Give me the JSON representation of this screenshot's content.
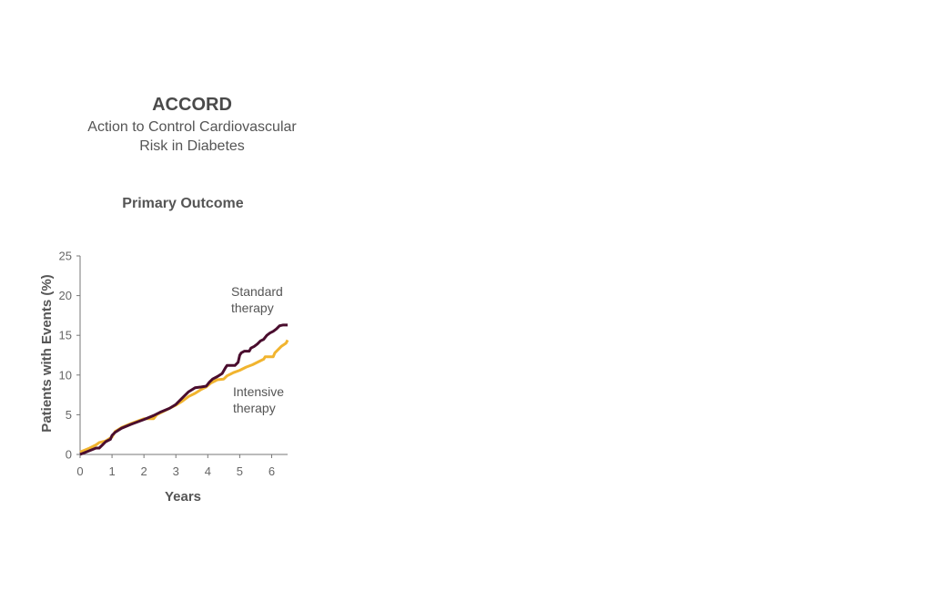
{
  "header": {
    "title": "ACCORD",
    "subtitle_line1": "Action to Control Cardiovascular",
    "subtitle_line2": "Risk in Diabetes"
  },
  "chart_data": {
    "type": "line",
    "title": "Primary Outcome",
    "xlabel": "Years",
    "ylabel": "Patients with Events (%)",
    "xlim": [
      0,
      6.5
    ],
    "ylim": [
      0,
      25
    ],
    "x_ticks": [
      0,
      1,
      2,
      3,
      4,
      5,
      6
    ],
    "y_ticks": [
      0,
      5,
      10,
      15,
      20,
      25
    ],
    "grid": false,
    "series": [
      {
        "key": "standard",
        "label_lines": [
          "Standard",
          "therapy"
        ],
        "color": "#4a0d2e",
        "points": [
          [
            0,
            0
          ],
          [
            0.25,
            0.4
          ],
          [
            0.5,
            0.8
          ],
          [
            0.6,
            0.8
          ],
          [
            0.7,
            1.2
          ],
          [
            0.8,
            1.6
          ],
          [
            0.95,
            1.9
          ],
          [
            1.0,
            2.4
          ],
          [
            1.1,
            2.8
          ],
          [
            1.3,
            3.3
          ],
          [
            1.6,
            3.8
          ],
          [
            2.0,
            4.4
          ],
          [
            2.3,
            4.9
          ],
          [
            2.5,
            5.3
          ],
          [
            2.8,
            5.8
          ],
          [
            3.0,
            6.3
          ],
          [
            3.1,
            6.7
          ],
          [
            3.2,
            7.1
          ],
          [
            3.4,
            7.9
          ],
          [
            3.6,
            8.4
          ],
          [
            3.8,
            8.5
          ],
          [
            3.95,
            8.6
          ],
          [
            4.05,
            9.1
          ],
          [
            4.15,
            9.5
          ],
          [
            4.3,
            9.8
          ],
          [
            4.45,
            10.2
          ],
          [
            4.55,
            10.9
          ],
          [
            4.6,
            11.2
          ],
          [
            4.85,
            11.2
          ],
          [
            4.95,
            11.6
          ],
          [
            5.0,
            12.5
          ],
          [
            5.05,
            12.8
          ],
          [
            5.15,
            13.0
          ],
          [
            5.3,
            13.0
          ],
          [
            5.35,
            13.4
          ],
          [
            5.45,
            13.6
          ],
          [
            5.55,
            13.9
          ],
          [
            5.65,
            14.3
          ],
          [
            5.75,
            14.5
          ],
          [
            5.85,
            15.0
          ],
          [
            5.95,
            15.3
          ],
          [
            6.05,
            15.5
          ],
          [
            6.15,
            15.8
          ],
          [
            6.25,
            16.2
          ],
          [
            6.35,
            16.3
          ],
          [
            6.5,
            16.3
          ]
        ]
      },
      {
        "key": "intensive",
        "label_lines": [
          "Intensive",
          "therapy"
        ],
        "color": "#f1b42f",
        "points": [
          [
            0,
            0.3
          ],
          [
            0.3,
            0.8
          ],
          [
            0.5,
            1.2
          ],
          [
            0.6,
            1.5
          ],
          [
            0.8,
            1.7
          ],
          [
            1.0,
            2.2
          ],
          [
            1.1,
            2.9
          ],
          [
            1.3,
            3.4
          ],
          [
            1.6,
            3.9
          ],
          [
            1.8,
            4.2
          ],
          [
            2.0,
            4.5
          ],
          [
            2.3,
            4.5
          ],
          [
            2.4,
            5.0
          ],
          [
            2.6,
            5.4
          ],
          [
            2.8,
            5.8
          ],
          [
            3.0,
            6.2
          ],
          [
            3.2,
            6.7
          ],
          [
            3.4,
            7.3
          ],
          [
            3.6,
            7.7
          ],
          [
            3.8,
            8.2
          ],
          [
            3.95,
            8.5
          ],
          [
            4.1,
            9.0
          ],
          [
            4.3,
            9.4
          ],
          [
            4.5,
            9.5
          ],
          [
            4.6,
            9.9
          ],
          [
            4.8,
            10.3
          ],
          [
            5.0,
            10.6
          ],
          [
            5.2,
            11.0
          ],
          [
            5.4,
            11.3
          ],
          [
            5.6,
            11.7
          ],
          [
            5.75,
            12.0
          ],
          [
            5.8,
            12.3
          ],
          [
            6.05,
            12.3
          ],
          [
            6.1,
            12.8
          ],
          [
            6.2,
            13.2
          ],
          [
            6.3,
            13.6
          ],
          [
            6.45,
            14.0
          ],
          [
            6.5,
            14.4
          ]
        ]
      }
    ]
  },
  "colors": {
    "standard": "#4a0d2e",
    "intensive": "#f1b42f",
    "axis": "#777777",
    "text": "#555555"
  }
}
